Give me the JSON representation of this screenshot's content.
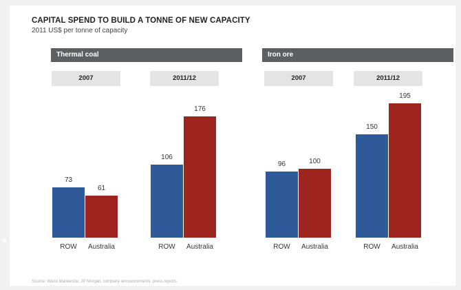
{
  "chart_data": {
    "type": "bar",
    "title": "CAPITAL SPEND TO BUILD A TONNE OF NEW CAPACITY",
    "subtitle": "2011 US$ per tonne of capacity",
    "source": "Source: Wood Mackenzie, JP Morgan, company announcements, press reports",
    "ylim": [
      0,
      195
    ],
    "colors": {
      "ROW": "#2e5a9a",
      "Australia": "#9e2420"
    },
    "panels": [
      {
        "title": "Thermal coal",
        "groups": [
          {
            "label": "2007",
            "categories": [
              "ROW",
              "Australia"
            ],
            "values": [
              73,
              61
            ]
          },
          {
            "label": "2011/12",
            "categories": [
              "ROW",
              "Australia"
            ],
            "values": [
              106,
              176
            ]
          }
        ]
      },
      {
        "title": "Iron ore",
        "groups": [
          {
            "label": "2007",
            "categories": [
              "ROW",
              "Australia"
            ],
            "values": [
              96,
              100
            ]
          },
          {
            "label": "2011/12",
            "categories": [
              "ROW",
              "Australia"
            ],
            "values": [
              150,
              195
            ]
          }
        ]
      }
    ]
  }
}
